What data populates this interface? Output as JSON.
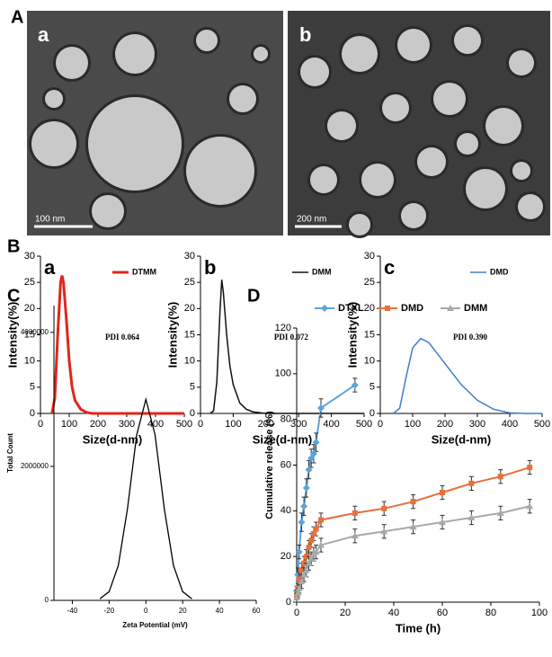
{
  "figure_labels": [
    "A",
    "B",
    "C",
    "D"
  ],
  "tem": [
    {
      "label": "a",
      "scale": "100 nm"
    },
    {
      "label": "b",
      "scale": "200 nm"
    }
  ],
  "chart_data": [
    {
      "type": "line",
      "panel_label": "a",
      "annotation": "PDI 0.064",
      "xlabel": "Size(d-nm)",
      "ylabel": "Intensity(%)",
      "xlim": [
        0,
        500
      ],
      "ylim": [
        0,
        30
      ],
      "xticks": [
        0,
        100,
        200,
        300,
        400,
        500
      ],
      "yticks": [
        0,
        5,
        10,
        15,
        20,
        25,
        30
      ],
      "legend": "upper right",
      "series": [
        {
          "name": "DTMM",
          "color": "#e0261c",
          "width": 3,
          "x": [
            40,
            50,
            60,
            70,
            75,
            80,
            90,
            100,
            110,
            120,
            140,
            160,
            180,
            200,
            500
          ],
          "values": [
            0,
            3,
            15,
            25,
            26.3,
            25,
            18,
            10,
            5,
            2.5,
            0.8,
            0.2,
            0,
            0,
            0
          ]
        }
      ]
    },
    {
      "type": "line",
      "panel_label": "b",
      "annotation": "PDI 0.072",
      "xlabel": "Size(d-nm)",
      "ylabel": "Intensity(%)",
      "xlim": [
        0,
        500
      ],
      "ylim": [
        0,
        30
      ],
      "xticks": [
        0,
        100,
        200,
        300,
        400,
        500
      ],
      "yticks": [
        0,
        5,
        10,
        15,
        20,
        25,
        30
      ],
      "legend": "upper right",
      "series": [
        {
          "name": "DMM",
          "color": "#111111",
          "width": 1.5,
          "x": [
            30,
            40,
            50,
            60,
            65,
            70,
            80,
            90,
            100,
            120,
            140,
            160,
            200,
            300,
            500
          ],
          "values": [
            0,
            0.5,
            6,
            20,
            25.5,
            23,
            15,
            9,
            5.5,
            2,
            0.8,
            0.3,
            0,
            0,
            0
          ]
        }
      ]
    },
    {
      "type": "line",
      "panel_label": "c",
      "annotation": "PDI 0.390",
      "xlabel": "Size(d-nm)",
      "ylabel": "Intensity(%)",
      "xlim": [
        0,
        500
      ],
      "ylim": [
        0,
        30
      ],
      "xticks": [
        0,
        100,
        200,
        300,
        400,
        500
      ],
      "yticks": [
        0,
        5,
        10,
        15,
        20,
        25,
        30
      ],
      "legend": "upper right",
      "series": [
        {
          "name": "DMD",
          "color": "#3f7fcf",
          "width": 1.5,
          "x": [
            40,
            60,
            80,
            100,
            125,
            150,
            200,
            250,
            300,
            350,
            400,
            450,
            500
          ],
          "values": [
            0,
            1,
            7,
            12.5,
            14.3,
            13.5,
            9.5,
            5.5,
            2.5,
            0.8,
            0.1,
            0,
            0
          ]
        }
      ]
    },
    {
      "type": "line",
      "xlabel": "Zeta Potential (mV)",
      "ylabel": "Total Count",
      "xlim": [
        -50,
        60
      ],
      "ylim": [
        0,
        4400000
      ],
      "xticks": [
        -40,
        -20,
        0,
        20,
        40,
        60
      ],
      "yticks": [
        0,
        2000000,
        4000000
      ],
      "series": [
        {
          "color": "#000000",
          "width": 1.3,
          "x": [
            -25,
            -20,
            -15,
            -10,
            -5,
            0,
            5,
            10,
            15,
            20,
            25
          ],
          "values": [
            23000,
            130000,
            520000,
            1370000,
            2470000,
            3000000,
            2470000,
            1370000,
            520000,
            130000,
            23000
          ]
        }
      ]
    },
    {
      "type": "line",
      "xlabel": "Time (h)",
      "ylabel": "Cumulative release (%)",
      "xlim": [
        0,
        100
      ],
      "ylim": [
        0,
        120
      ],
      "xticks": [
        0,
        20,
        40,
        60,
        80,
        100
      ],
      "yticks": [
        0,
        20,
        40,
        60,
        80,
        100,
        120
      ],
      "legend": "top",
      "series": [
        {
          "name": "DTXL",
          "color": "#5ba3dc",
          "width": 2,
          "marker": "diamond",
          "x": [
            0,
            0.5,
            1,
            2,
            3,
            4,
            5,
            6,
            7,
            8,
            10,
            24
          ],
          "values": [
            5,
            12,
            22,
            35,
            42,
            50,
            58,
            63,
            65,
            70,
            85,
            95
          ],
          "errors": [
            2,
            3,
            3,
            4,
            4,
            4,
            4,
            4,
            4,
            4,
            4,
            3
          ]
        },
        {
          "name": "DMD",
          "color": "#e8703a",
          "width": 2,
          "marker": "square",
          "x": [
            0,
            0.5,
            1,
            2,
            3,
            4,
            5,
            6,
            7,
            8,
            10,
            24,
            36,
            48,
            60,
            72,
            84,
            96
          ],
          "values": [
            3,
            6,
            10,
            14,
            17,
            20,
            24,
            27,
            30,
            32,
            36,
            39,
            41,
            44,
            48,
            52,
            55,
            59
          ],
          "errors": [
            2,
            2,
            3,
            3,
            3,
            3,
            3,
            3,
            3,
            3,
            3,
            3,
            3,
            3,
            3,
            3,
            3,
            3
          ]
        },
        {
          "name": "DMM",
          "color": "#a4abab",
          "width": 2,
          "marker": "triangle",
          "x": [
            0,
            0.5,
            1,
            2,
            3,
            4,
            5,
            6,
            7,
            8,
            10,
            24,
            36,
            48,
            60,
            72,
            84,
            96
          ],
          "values": [
            2,
            4,
            6,
            9,
            12,
            14,
            17,
            19,
            21,
            22,
            25,
            29,
            31,
            33,
            35,
            37,
            39,
            42
          ],
          "errors": [
            2,
            2,
            2,
            3,
            3,
            3,
            3,
            3,
            3,
            3,
            3,
            3,
            3,
            3,
            3,
            3,
            3,
            3
          ]
        }
      ]
    }
  ]
}
